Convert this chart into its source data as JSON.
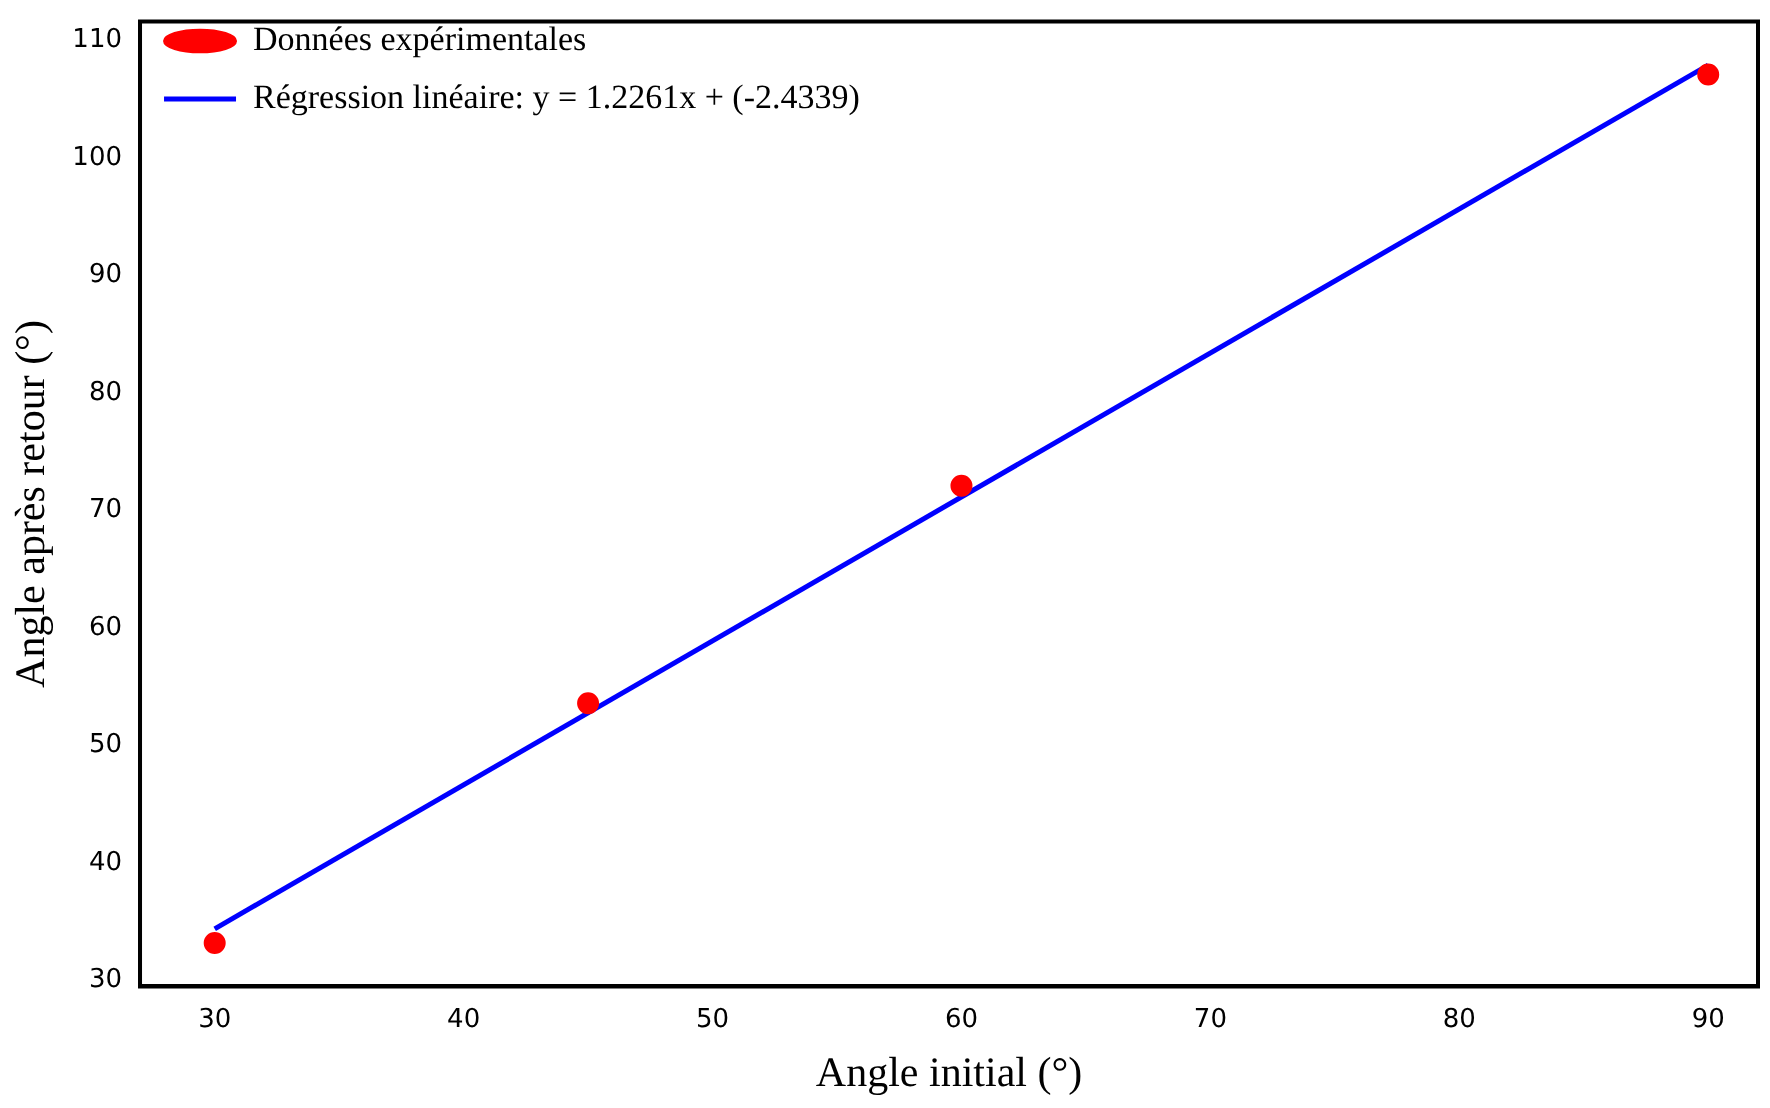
{
  "chart_data": {
    "type": "scatter",
    "xlabel": "Angle initial (°)",
    "ylabel": "Angle après retour (°)",
    "xlim": [
      27,
      92
    ],
    "xticks": [
      30,
      40,
      50,
      60,
      70,
      80,
      90
    ],
    "ylim": [
      29.5,
      111.6
    ],
    "yticks": [
      30,
      40,
      50,
      60,
      70,
      80,
      90,
      100,
      110
    ],
    "grid": false,
    "legend": "top left",
    "series": [
      {
        "name": "Données expérimentales",
        "marker": "circle",
        "color": "#ff0000",
        "x": [
          30,
          45,
          60,
          90
        ],
        "values": [
          33.2,
          53.6,
          72.1,
          107.1
        ]
      },
      {
        "name": "Régression linéaire: y = 1.2261x + (-2.4339)",
        "type": "line",
        "marker": "none",
        "line_style": "solid",
        "color": "#0000ff",
        "x": [
          30,
          90
        ],
        "values": [
          34.4,
          107.9
        ]
      }
    ]
  }
}
